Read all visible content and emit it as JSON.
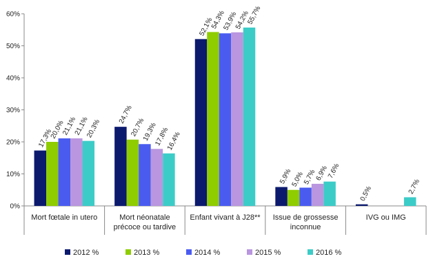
{
  "chart_data": {
    "type": "bar",
    "categories": [
      "Mort fœtale in utero",
      "Mort néonatale précoce ou tardive",
      "Enfant vivant à J28**",
      "Issue de grossesse inconnue",
      "IVG ou IMG"
    ],
    "series": [
      {
        "name": "2012 %",
        "color": "#0c1a6e",
        "values": [
          17.3,
          24.7,
          52.1,
          5.9,
          0.5
        ],
        "value_labels": [
          "17,3%",
          "24,7%",
          "52,1%",
          "5,9%",
          "0,5%"
        ]
      },
      {
        "name": "2013 %",
        "color": "#8fcc00",
        "values": [
          20.0,
          20.7,
          54.3,
          5.0,
          null
        ],
        "value_labels": [
          "20,0%",
          "20,7%",
          "54,3%",
          "5,0%",
          null
        ]
      },
      {
        "name": "2014 %",
        "color": "#4a5cf0",
        "values": [
          21.1,
          19.3,
          53.9,
          5.7,
          null
        ],
        "value_labels": [
          "21,1%",
          "19,3%",
          "53,9%",
          "5,7%",
          null
        ]
      },
      {
        "name": "2015 %",
        "color": "#b996df",
        "values": [
          21.1,
          17.8,
          54.2,
          6.9,
          null
        ],
        "value_labels": [
          "21,1%",
          "17,8%",
          "54,2%",
          "6,9%",
          null
        ]
      },
      {
        "name": "2016 %",
        "color": "#3cccc8",
        "values": [
          20.3,
          16.4,
          55.7,
          7.6,
          2.7
        ],
        "value_labels": [
          "20,3%",
          "16,4%",
          "55,7%",
          "7,6%",
          "2,7%"
        ]
      }
    ],
    "ylim": [
      0,
      60
    ],
    "yticks": [
      {
        "value": 0,
        "label": "0%"
      },
      {
        "value": 10,
        "label": "10%"
      },
      {
        "value": 20,
        "label": "20%"
      },
      {
        "value": 30,
        "label": "30%"
      },
      {
        "value": 40,
        "label": "40%"
      },
      {
        "value": 50,
        "label": "50%"
      },
      {
        "value": 60,
        "label": "60%"
      }
    ],
    "grid": false,
    "legend": "bottom"
  }
}
